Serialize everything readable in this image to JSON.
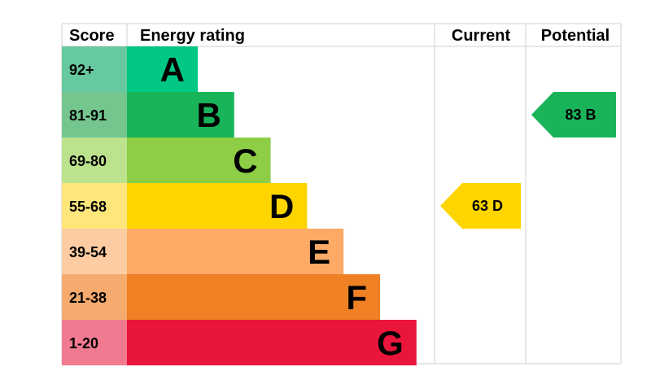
{
  "headers": {
    "score": "Score",
    "rating": "Energy rating",
    "current": "Current",
    "potential": "Potential"
  },
  "chart_data": {
    "type": "bar",
    "bands": [
      {
        "letter": "A",
        "score": "92+",
        "color": "#00c781",
        "score_bg": "#67c99f"
      },
      {
        "letter": "B",
        "score": "81-91",
        "color": "#19b459",
        "score_bg": "#74c68e"
      },
      {
        "letter": "C",
        "score": "69-80",
        "color": "#8dce46",
        "score_bg": "#bde28e"
      },
      {
        "letter": "D",
        "score": "55-68",
        "color": "#ffd500",
        "score_bg": "#ffe67a"
      },
      {
        "letter": "E",
        "score": "39-54",
        "color": "#fcaa65",
        "score_bg": "#fdcca3"
      },
      {
        "letter": "F",
        "score": "21-38",
        "color": "#ef8023",
        "score_bg": "#f5aa6e"
      },
      {
        "letter": "G",
        "score": "1-20",
        "color": "#e9153b",
        "score_bg": "#f07a8f"
      }
    ],
    "current": {
      "value": 63,
      "band": "D",
      "label": "63  D",
      "color": "#ffd500",
      "text_color": "#000000"
    },
    "potential": {
      "value": 83,
      "band": "B",
      "label": "83  B",
      "color": "#19b459",
      "text_color": "#000000"
    }
  }
}
